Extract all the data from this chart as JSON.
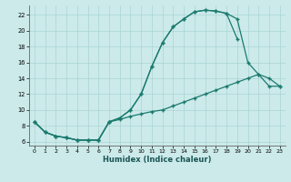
{
  "xlabel": "Humidex (Indice chaleur)",
  "bg_color": "#cceaea",
  "line_color": "#1a7a6e",
  "xlim": [
    -0.5,
    23.5
  ],
  "ylim": [
    5.5,
    23.2
  ],
  "xticks": [
    0,
    1,
    2,
    3,
    4,
    5,
    6,
    7,
    8,
    9,
    10,
    11,
    12,
    13,
    14,
    15,
    16,
    17,
    18,
    19,
    20,
    21,
    22,
    23
  ],
  "yticks": [
    6,
    8,
    10,
    12,
    14,
    16,
    18,
    20,
    22
  ],
  "line1_x": [
    0,
    1,
    2,
    3,
    4,
    5,
    6,
    7,
    8,
    9,
    10,
    11,
    12,
    13,
    14,
    15,
    16,
    17,
    18,
    19
  ],
  "line1_y": [
    8.5,
    7.2,
    6.7,
    6.5,
    6.2,
    6.2,
    6.2,
    8.5,
    9.0,
    10.0,
    12.0,
    15.5,
    18.5,
    20.5,
    21.5,
    22.4,
    22.6,
    22.5,
    22.2,
    19.0
  ],
  "line2_x": [
    0,
    1,
    2,
    3,
    4,
    5,
    6,
    7,
    8,
    9,
    10,
    11,
    12,
    13,
    14,
    15,
    16,
    17,
    18,
    19,
    20,
    21,
    22,
    23
  ],
  "line2_y": [
    8.5,
    7.2,
    6.7,
    6.5,
    6.2,
    6.2,
    6.2,
    8.5,
    9.0,
    10.0,
    12.0,
    15.5,
    18.5,
    20.5,
    21.5,
    22.4,
    22.6,
    22.5,
    22.2,
    21.5,
    16.0,
    14.5,
    14.0,
    13.0
  ],
  "line3_x": [
    0,
    1,
    2,
    3,
    4,
    5,
    6,
    7,
    8,
    9,
    10,
    11,
    12,
    13,
    14,
    15,
    16,
    17,
    18,
    19,
    20,
    21,
    22,
    23
  ],
  "line3_y": [
    8.5,
    7.2,
    6.7,
    6.5,
    6.2,
    6.2,
    6.2,
    8.5,
    8.8,
    9.2,
    9.5,
    9.8,
    10.0,
    10.5,
    11.0,
    11.5,
    12.0,
    12.5,
    13.0,
    13.5,
    14.0,
    14.5,
    13.0,
    13.0
  ]
}
